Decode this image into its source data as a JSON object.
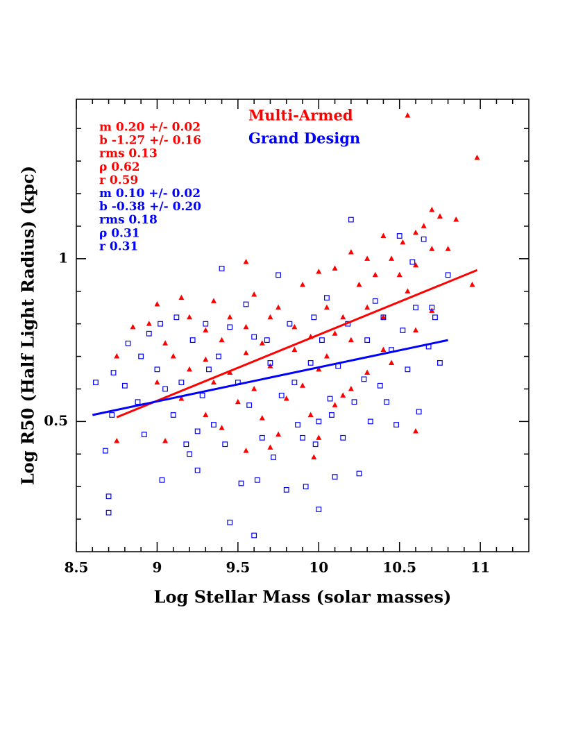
{
  "chart_data": {
    "type": "scatter",
    "xlabel": "Log Stellar Mass (solar masses)",
    "ylabel": "Log R50 (Half Light Radius) (kpc)",
    "xlim": [
      8.5,
      11.3
    ],
    "ylim": [
      0.1,
      1.49
    ],
    "xticks": [
      8.5,
      9,
      9.5,
      10,
      10.5,
      11
    ],
    "xminorticks": [
      8.6,
      8.7,
      8.8,
      8.9,
      9.1,
      9.2,
      9.3,
      9.4,
      9.6,
      9.7,
      9.8,
      9.9,
      10.1,
      10.2,
      10.3,
      10.4,
      10.6,
      10.7,
      10.8,
      10.9,
      11.1,
      11.2
    ],
    "yticks": [
      0.5,
      1
    ],
    "yminorticks": [
      0.2,
      0.3,
      0.4,
      0.6,
      0.7,
      0.8,
      0.9,
      1.1,
      1.2,
      1.3,
      1.4
    ],
    "annotations": [
      {
        "text": "m 0.20 +/- 0.02",
        "color": "#ff0000"
      },
      {
        "text": "b -1.27 +/- 0.16",
        "color": "#ff0000"
      },
      {
        "text": "rms 0.13",
        "color": "#ff0000"
      },
      {
        "text": "ρ 0.62",
        "color": "#ff0000"
      },
      {
        "text": "r 0.59",
        "color": "#ff0000"
      },
      {
        "text": "m 0.10 +/- 0.02",
        "color": "#0000ff"
      },
      {
        "text": "b -0.38 +/- 0.20",
        "color": "#0000ff"
      },
      {
        "text": "rms 0.18",
        "color": "#0000ff"
      },
      {
        "text": "ρ 0.31",
        "color": "#0000ff"
      },
      {
        "text": "r 0.31",
        "color": "#0000ff"
      }
    ],
    "fits": [
      {
        "color": "#ff0000",
        "x": [
          8.75,
          10.98
        ],
        "values": [
          0.513,
          0.965
        ]
      },
      {
        "color": "#0000ff",
        "x": [
          8.6,
          10.8
        ],
        "values": [
          0.52,
          0.75
        ]
      }
    ],
    "series": [
      {
        "name": "Multi-Armed",
        "color": "#ff0000",
        "marker": "triangle",
        "x": [
          10.55,
          10.98,
          10.7,
          10.75,
          10.85,
          10.65,
          10.6,
          10.4,
          10.52,
          10.7,
          10.8,
          10.2,
          10.3,
          10.45,
          10.6,
          10.1,
          10.0,
          10.35,
          10.5,
          10.95,
          9.55,
          9.9,
          10.25,
          10.55,
          9.15,
          9.35,
          9.6,
          9.75,
          10.05,
          10.3,
          10.7,
          9.0,
          8.95,
          9.2,
          9.45,
          9.7,
          10.15,
          10.4,
          9.3,
          9.55,
          9.85,
          10.1,
          10.6,
          8.85,
          9.05,
          9.4,
          9.65,
          9.95,
          10.2,
          10.4,
          8.75,
          9.1,
          9.3,
          9.55,
          9.85,
          10.05,
          9.2,
          9.45,
          9.7,
          10.0,
          10.3,
          9.0,
          9.35,
          9.6,
          9.9,
          10.2,
          9.15,
          9.5,
          9.8,
          10.1,
          9.3,
          9.65,
          9.95,
          9.4,
          9.75,
          10.0,
          8.75,
          9.05,
          9.55,
          9.97,
          9.7,
          10.6,
          10.15,
          10.45
        ],
        "values": [
          1.44,
          1.31,
          1.15,
          1.13,
          1.12,
          1.1,
          1.08,
          1.07,
          1.05,
          1.03,
          1.03,
          1.02,
          1.0,
          1.0,
          0.98,
          0.97,
          0.96,
          0.95,
          0.95,
          0.92,
          0.99,
          0.92,
          0.92,
          0.9,
          0.88,
          0.87,
          0.89,
          0.85,
          0.85,
          0.85,
          0.84,
          0.86,
          0.8,
          0.82,
          0.82,
          0.82,
          0.82,
          0.82,
          0.78,
          0.79,
          0.79,
          0.77,
          0.78,
          0.79,
          0.74,
          0.75,
          0.74,
          0.76,
          0.75,
          0.72,
          0.7,
          0.7,
          0.69,
          0.71,
          0.72,
          0.7,
          0.66,
          0.65,
          0.67,
          0.66,
          0.65,
          0.62,
          0.62,
          0.6,
          0.61,
          0.6,
          0.57,
          0.56,
          0.57,
          0.55,
          0.52,
          0.51,
          0.52,
          0.48,
          0.46,
          0.45,
          0.44,
          0.44,
          0.41,
          0.39,
          0.42,
          0.47,
          0.58,
          0.68
        ]
      },
      {
        "name": "Grand Design",
        "color": "#0000ff",
        "marker": "square",
        "x": [
          8.62,
          8.68,
          8.7,
          8.7,
          8.72,
          8.73,
          8.8,
          8.82,
          8.88,
          8.9,
          8.92,
          8.95,
          9.0,
          9.02,
          9.03,
          9.05,
          9.1,
          9.12,
          9.15,
          9.18,
          9.2,
          9.22,
          9.25,
          9.28,
          9.3,
          9.32,
          9.35,
          9.38,
          9.4,
          9.42,
          9.45,
          9.45,
          9.5,
          9.52,
          9.55,
          9.57,
          9.6,
          9.6,
          9.62,
          9.65,
          9.7,
          9.72,
          9.75,
          9.77,
          9.8,
          9.82,
          9.85,
          9.87,
          9.9,
          9.92,
          9.95,
          9.97,
          10.0,
          10.0,
          10.02,
          10.05,
          10.07,
          10.1,
          10.12,
          10.15,
          10.18,
          10.2,
          10.22,
          10.25,
          10.28,
          10.3,
          10.32,
          10.35,
          10.38,
          10.4,
          10.42,
          10.45,
          10.48,
          10.5,
          10.52,
          10.55,
          10.58,
          10.6,
          10.62,
          10.65,
          10.68,
          10.7,
          10.72,
          10.75,
          10.8,
          9.98,
          10.08,
          9.68,
          9.25
        ],
        "values": [
          0.62,
          0.41,
          0.27,
          0.22,
          0.52,
          0.65,
          0.61,
          0.74,
          0.56,
          0.7,
          0.46,
          0.77,
          0.66,
          0.8,
          0.32,
          0.6,
          0.52,
          0.82,
          0.62,
          0.43,
          0.4,
          0.75,
          0.35,
          0.58,
          0.8,
          0.66,
          0.49,
          0.7,
          0.97,
          0.43,
          0.79,
          0.19,
          0.62,
          0.31,
          0.86,
          0.55,
          0.15,
          0.76,
          0.32,
          0.45,
          0.68,
          0.39,
          0.95,
          0.58,
          0.29,
          0.8,
          0.62,
          0.49,
          0.45,
          0.3,
          0.68,
          0.82,
          0.23,
          0.5,
          0.75,
          0.88,
          0.57,
          0.33,
          0.67,
          0.45,
          0.8,
          1.12,
          0.56,
          0.34,
          0.63,
          0.75,
          0.5,
          0.87,
          0.61,
          0.82,
          0.56,
          0.72,
          0.49,
          1.07,
          0.78,
          0.66,
          0.99,
          0.85,
          0.53,
          1.06,
          0.73,
          0.85,
          0.82,
          0.68,
          0.95,
          0.43,
          0.52,
          0.75,
          0.47
        ]
      }
    ]
  }
}
